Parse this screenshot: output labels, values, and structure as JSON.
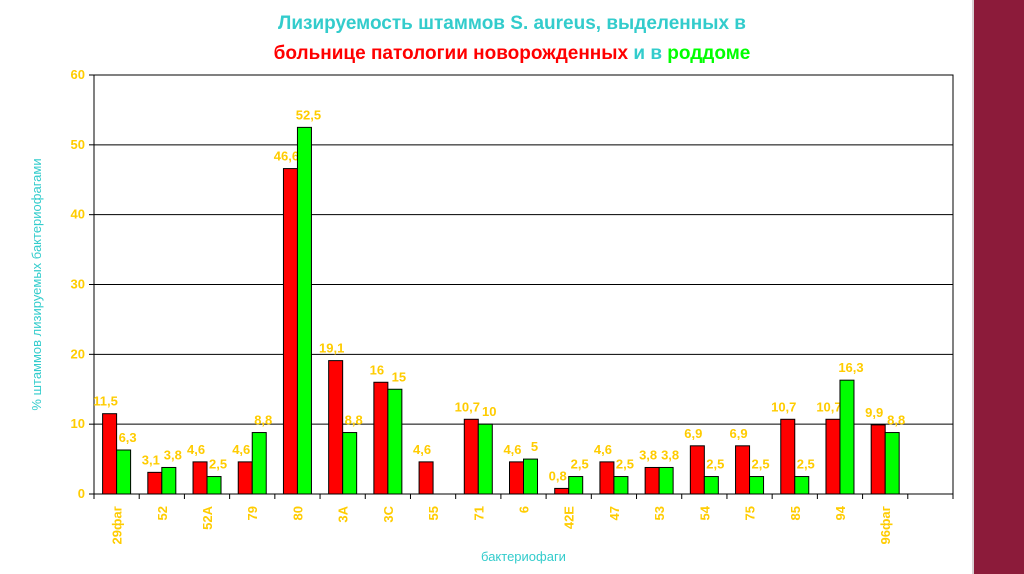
{
  "title": {
    "line1": "Лизируемость штаммов S. aureus, выделенных в",
    "line2_part1": "больнице патологии новорожденных",
    "line2_part2": " и в ",
    "line2_part3": "роддоме"
  },
  "colors": {
    "series_red": "#ff0000",
    "series_green": "#00ff00",
    "labels": "#ffcc00",
    "axis_title": "#33cccc",
    "title_cyan": "#33cccc",
    "band": "#8c1b3a"
  },
  "chart_data": {
    "type": "bar",
    "title": "Лизируемость штаммов S. aureus, выделенных в больнице патологии новорожденных и в роддоме",
    "xlabel": "бактериофаги",
    "ylabel": "% штаммов лизируемых бактериофагами",
    "ylim": [
      0,
      60
    ],
    "yticks": [
      0,
      10,
      20,
      30,
      40,
      50,
      60
    ],
    "grid": true,
    "categories": [
      "29фаг",
      "52",
      "52A",
      "79",
      "80",
      "3A",
      "3C",
      "55",
      "71",
      "6",
      "42E",
      "47",
      "53",
      "54",
      "75",
      "85",
      "94",
      "96фаг"
    ],
    "series": [
      {
        "color": "#ff0000",
        "values": [
          11.5,
          3.1,
          4.6,
          4.6,
          46.6,
          19.1,
          16,
          4.6,
          10.7,
          4.6,
          0.8,
          4.6,
          3.8,
          6.9,
          6.9,
          10.7,
          10.7,
          9.9
        ],
        "labels": [
          "11,5",
          "3,1",
          "4,6",
          "4,6",
          "46,6",
          "19,1",
          "16",
          "4,6",
          "10,7",
          "4,6",
          "0,8",
          "4,6",
          "3,8",
          "6,9",
          "6,9",
          "10,7",
          "10,7",
          "9,9"
        ]
      },
      {
        "color": "#00ff00",
        "values": [
          6.3,
          3.8,
          2.5,
          8.8,
          52.5,
          8.8,
          15,
          null,
          10,
          5,
          2.5,
          2.5,
          3.8,
          2.5,
          2.5,
          2.5,
          16.3,
          8.8
        ],
        "labels": [
          "6,3",
          "3,8",
          "2,5",
          "8,8",
          "52,5",
          "8,8",
          "15",
          "",
          "10",
          "5",
          "2,5",
          "2,5",
          "3,8",
          "2,5",
          "2,5",
          "2,5",
          "16,3",
          "8,8"
        ]
      }
    ]
  }
}
